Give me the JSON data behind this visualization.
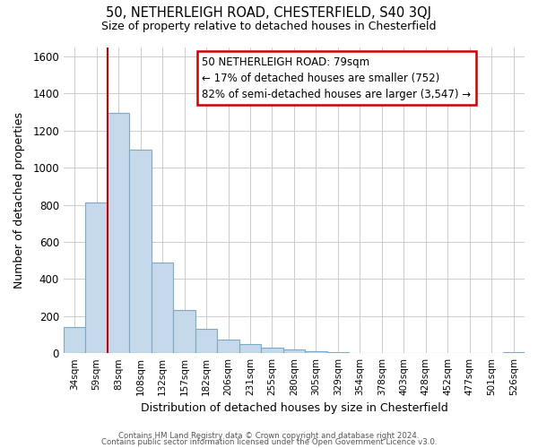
{
  "title": "50, NETHERLEIGH ROAD, CHESTERFIELD, S40 3QJ",
  "subtitle": "Size of property relative to detached houses in Chesterfield",
  "xlabel": "Distribution of detached houses by size in Chesterfield",
  "ylabel": "Number of detached properties",
  "bar_labels": [
    "34sqm",
    "59sqm",
    "83sqm",
    "108sqm",
    "132sqm",
    "157sqm",
    "182sqm",
    "206sqm",
    "231sqm",
    "255sqm",
    "280sqm",
    "305sqm",
    "329sqm",
    "354sqm",
    "378sqm",
    "403sqm",
    "428sqm",
    "452sqm",
    "477sqm",
    "501sqm",
    "526sqm"
  ],
  "bar_heights": [
    140,
    810,
    1295,
    1095,
    490,
    235,
    130,
    75,
    50,
    28,
    18,
    10,
    5,
    2,
    1,
    0,
    0,
    0,
    0,
    0,
    8
  ],
  "bar_color": "#c5d9ea",
  "bar_edge_color": "#7aaac8",
  "vline_x": 1.5,
  "vline_color": "#cc0000",
  "ylim": [
    0,
    1650
  ],
  "yticks": [
    0,
    200,
    400,
    600,
    800,
    1000,
    1200,
    1400,
    1600
  ],
  "annotation_title": "50 NETHERLEIGH ROAD: 79sqm",
  "annotation_line1": "← 17% of detached houses are smaller (752)",
  "annotation_line2": "82% of semi-detached houses are larger (3,547) →",
  "annotation_box_color": "#ffffff",
  "annotation_box_edge": "#cc0000",
  "footer1": "Contains HM Land Registry data © Crown copyright and database right 2024.",
  "footer2": "Contains public sector information licensed under the Open Government Licence v3.0.",
  "background_color": "#ffffff",
  "grid_color": "#cccccc"
}
